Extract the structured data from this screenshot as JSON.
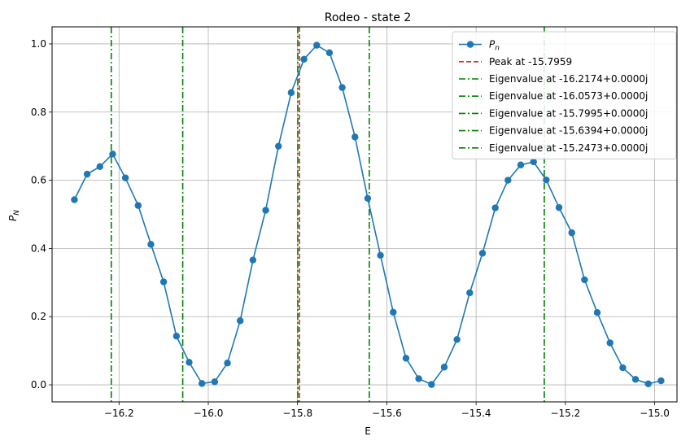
{
  "chart_data": {
    "type": "line",
    "title": "Rodeo - state 2",
    "xlabel": "E",
    "ylabel": "P",
    "ylabel_sub": "N",
    "xlim": [
      -16.35,
      -14.95
    ],
    "ylim": [
      -0.05,
      1.05
    ],
    "xticks": [
      -16.2,
      -16.0,
      -15.8,
      -15.6,
      -15.4,
      -15.2,
      -15.0
    ],
    "xtick_labels": [
      "−16.2",
      "−16.0",
      "−15.8",
      "−15.6",
      "−15.4",
      "−15.2",
      "−15.0"
    ],
    "yticks": [
      0.0,
      0.2,
      0.4,
      0.6,
      0.8,
      1.0
    ],
    "ytick_labels": [
      "0.0",
      "0.2",
      "0.4",
      "0.6",
      "0.8",
      "1.0"
    ],
    "grid": true,
    "legend_position": "upper right",
    "series": [
      {
        "name": "P",
        "name_sub": "n",
        "color": "#1f77b4",
        "marker": "circle",
        "x": [
          -16.3,
          -16.2714,
          -16.2429,
          -16.2143,
          -16.1857,
          -16.1571,
          -16.1286,
          -16.1,
          -16.0714,
          -16.0429,
          -16.0143,
          -15.9857,
          -15.9571,
          -15.9286,
          -15.9,
          -15.8714,
          -15.8429,
          -15.8143,
          -15.7857,
          -15.7571,
          -15.7286,
          -15.7,
          -15.6714,
          -15.6429,
          -15.6143,
          -15.5857,
          -15.5571,
          -15.5286,
          -15.5,
          -15.4714,
          -15.4429,
          -15.4143,
          -15.3857,
          -15.3571,
          -15.3286,
          -15.3,
          -15.2714,
          -15.2429,
          -15.2143,
          -15.1857,
          -15.1571,
          -15.1286,
          -15.1,
          -15.0714,
          -15.0429,
          -15.0143,
          -14.9857
        ],
        "y": [
          0.543,
          0.618,
          0.64,
          0.677,
          0.607,
          0.526,
          0.412,
          0.302,
          0.143,
          0.066,
          0.004,
          0.009,
          0.064,
          0.188,
          0.366,
          0.512,
          0.7,
          0.857,
          0.955,
          0.996,
          0.974,
          0.872,
          0.727,
          0.547,
          0.38,
          0.213,
          0.078,
          0.018,
          0.001,
          0.052,
          0.133,
          0.27,
          0.386,
          0.519,
          0.6,
          0.645,
          0.654,
          0.601,
          0.52,
          0.446,
          0.308,
          0.212,
          0.123,
          0.05,
          0.016,
          0.003,
          0.012
        ]
      }
    ],
    "vlines": [
      {
        "x": -15.7959,
        "color": "#d62728",
        "style": "dashed",
        "label": "Peak at -15.7959"
      },
      {
        "x": -16.2174,
        "color": "#008000",
        "style": "dashdot",
        "label": "Eigenvalue at -16.2174+0.0000j"
      },
      {
        "x": -16.0573,
        "color": "#008000",
        "style": "dashdot",
        "label": "Eigenvalue at -16.0573+0.0000j"
      },
      {
        "x": -15.7995,
        "color": "#008000",
        "style": "dashdot",
        "label": "Eigenvalue at -15.7995+0.0000j"
      },
      {
        "x": -15.6394,
        "color": "#008000",
        "style": "dashdot",
        "label": "Eigenvalue at -15.6394+0.0000j"
      },
      {
        "x": -15.2473,
        "color": "#008000",
        "style": "dashdot",
        "label": "Eigenvalue at -15.2473+0.0000j"
      }
    ]
  }
}
